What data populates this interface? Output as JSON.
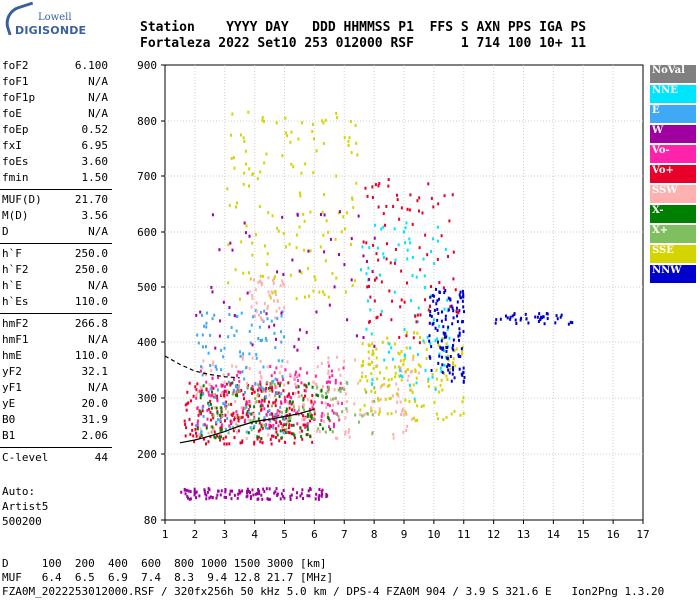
{
  "logo": {
    "line1": "Lowell",
    "line2": "DIGISONDE"
  },
  "header": {
    "labels": "Station    YYYY DAY   DDD HHMMSS P1  FFS S AXN PPS IGA PS",
    "values": "Fortaleza 2022 Set10 253 012000 RSF      1 714 100 10+ 11"
  },
  "params": [
    {
      "label": "foF2",
      "value": "6.100"
    },
    {
      "label": "foF1",
      "value": "N/A"
    },
    {
      "label": "foF1p",
      "value": "N/A"
    },
    {
      "label": "foE",
      "value": "N/A"
    },
    {
      "label": "foEp",
      "value": "0.52"
    },
    {
      "label": "fxI",
      "value": "6.95"
    },
    {
      "label": "foEs",
      "value": "3.60"
    },
    {
      "label": "fmin",
      "value": "1.50"
    },
    {
      "label": "MUF(D)",
      "value": "21.70"
    },
    {
      "label": "M(D)",
      "value": "3.56"
    },
    {
      "label": "D",
      "value": "N/A"
    },
    {
      "label": "h`F",
      "value": "250.0"
    },
    {
      "label": "h`F2",
      "value": "250.0"
    },
    {
      "label": "h`E",
      "value": "N/A"
    },
    {
      "label": "h`Es",
      "value": "110.0"
    },
    {
      "label": "hmF2",
      "value": "266.8"
    },
    {
      "label": "hmF1",
      "value": "N/A"
    },
    {
      "label": "hmE",
      "value": "110.0"
    },
    {
      "label": "yF2",
      "value": "32.1"
    },
    {
      "label": "yF1",
      "value": "N/A"
    },
    {
      "label": "yE",
      "value": "20.0"
    },
    {
      "label": "B0",
      "value": "31.9"
    },
    {
      "label": "B1",
      "value": "2.06"
    },
    {
      "label": "C-level",
      "value": "44"
    }
  ],
  "auto": {
    "line1": "Auto:",
    "line2": "Artist5",
    "line3": "500200"
  },
  "legend": [
    {
      "label": "NoVal",
      "color": "#808080"
    },
    {
      "label": "NNE",
      "color": "#00e5ff"
    },
    {
      "label": "E",
      "color": "#3fa9f5"
    },
    {
      "label": "W",
      "color": "#a000a0"
    },
    {
      "label": "Vo-",
      "color": "#ff22aa"
    },
    {
      "label": "Vo+",
      "color": "#e8002a"
    },
    {
      "label": "SSW",
      "color": "#ffb0b0"
    },
    {
      "label": "X-",
      "color": "#008000"
    },
    {
      "label": "X+",
      "color": "#7fbf5f"
    },
    {
      "label": "SSE",
      "color": "#d4d400"
    },
    {
      "label": "NNW",
      "color": "#0000cc"
    }
  ],
  "bottom": {
    "line1": "D     100  200  400  600  800 1000 1500 3000 [km]",
    "line2": "MUF   6.4  6.5  6.9  7.4  8.3  9.4 12.8 21.7 [MHz]",
    "line3": "FZA0M_2022253012000.RSF / 320fx256h 50 kHz 5.0 km / DPS-4 FZA0M 904 / 3.9 S 321.6 E   Ion2Png 1.3.20"
  },
  "chart_data": {
    "type": "scatter",
    "x_ticks": [
      "1",
      "2",
      "3",
      "4",
      "5",
      "6",
      "7",
      "8",
      "9",
      "10",
      "11",
      "12",
      "13",
      "14",
      "15",
      "16",
      "17"
    ],
    "y_ticks": [
      "80",
      "200",
      "300",
      "400",
      "500",
      "600",
      "700",
      "800",
      "900"
    ],
    "xlim": [
      1,
      17
    ],
    "ylim": [
      80,
      900
    ],
    "grid": true,
    "legend_position": "right",
    "traces": [
      {
        "name": "F2 profile",
        "color": "#000000",
        "x": [
          1.5,
          2.0,
          2.5,
          3.0,
          3.5,
          4.0,
          4.5,
          5.0,
          5.5,
          6.0
        ],
        "y": [
          220,
          225,
          232,
          240,
          250,
          258,
          262,
          267,
          272,
          280
        ]
      },
      {
        "name": "topside",
        "color": "#000000",
        "dashed": true,
        "x": [
          1.0,
          1.5,
          2.0,
          2.5,
          3.0,
          3.5
        ],
        "y": [
          375,
          360,
          348,
          342,
          338,
          336
        ]
      }
    ],
    "clusters": [
      {
        "series": "Vo+",
        "color": "#e8002a",
        "x": [
          1.6,
          6.0
        ],
        "y": [
          220,
          330
        ],
        "n": 260
      },
      {
        "series": "Vo-",
        "color": "#ff22aa",
        "x": [
          2.0,
          7.0
        ],
        "y": [
          250,
          360
        ],
        "n": 160
      },
      {
        "series": "SSW",
        "color": "#ffb0b0",
        "x": [
          2.0,
          9.5
        ],
        "y": [
          230,
          380
        ],
        "n": 180
      },
      {
        "series": "X-",
        "color": "#008000",
        "x": [
          2.0,
          6.5
        ],
        "y": [
          230,
          330
        ],
        "n": 90
      },
      {
        "series": "X+",
        "color": "#7fbf5f",
        "x": [
          2.5,
          8.0
        ],
        "y": [
          240,
          340
        ],
        "n": 80
      },
      {
        "series": "SSE",
        "color": "#d4d400",
        "x": [
          3.0,
          7.5
        ],
        "y": [
          480,
          820
        ],
        "n": 140
      },
      {
        "series": "SSE",
        "color": "#d4d400",
        "x": [
          7.5,
          11.0
        ],
        "y": [
          260,
          420
        ],
        "n": 140
      },
      {
        "series": "E",
        "color": "#3fa9f5",
        "x": [
          2.0,
          5.0
        ],
        "y": [
          240,
          460
        ],
        "n": 120
      },
      {
        "series": "NNE",
        "color": "#00e5ff",
        "x": [
          7.5,
          10.5
        ],
        "y": [
          300,
          620
        ],
        "n": 90
      },
      {
        "series": "NNW",
        "color": "#0000cc",
        "x": [
          9.8,
          11.0
        ],
        "y": [
          330,
          500
        ],
        "n": 120
      },
      {
        "series": "NNW",
        "color": "#0000cc",
        "x": [
          12.0,
          14.6
        ],
        "y": [
          435,
          455
        ],
        "n": 40
      },
      {
        "series": "W",
        "color": "#a000a0",
        "x": [
          1.5,
          6.5
        ],
        "y": [
          120,
          140
        ],
        "n": 120
      },
      {
        "series": "Vo+",
        "color": "#e8002a",
        "x": [
          7.5,
          10.8
        ],
        "y": [
          400,
          700
        ],
        "n": 90
      },
      {
        "series": "SSW",
        "color": "#ffb0b0",
        "x": [
          3.8,
          5.0
        ],
        "y": [
          440,
          520
        ],
        "n": 40
      },
      {
        "series": "W",
        "color": "#a000a0",
        "x": [
          2.0,
          8.0
        ],
        "y": [
          380,
          640
        ],
        "n": 60
      }
    ]
  }
}
